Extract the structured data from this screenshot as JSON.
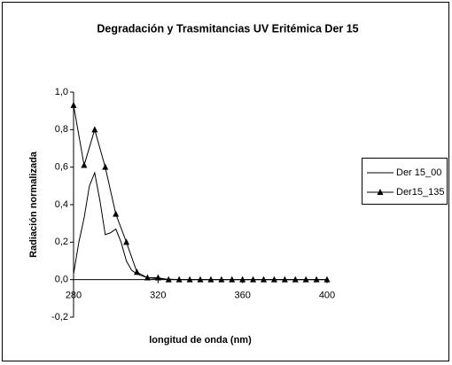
{
  "chart_data": {
    "type": "line",
    "title": "Degradación y Trasmitancias UV Eritémica Der 15",
    "xlabel": "longitud de onda (nm)",
    "ylabel": "Radiación normalizada",
    "xlim": [
      280,
      400
    ],
    "xticks": [
      280,
      320,
      360,
      400
    ],
    "ylim": [
      -0.2,
      1.0
    ],
    "yticks": [
      {
        "value": -0.2,
        "label": "-0,2"
      },
      {
        "value": 0,
        "label": "0,0"
      },
      {
        "value": 0.2,
        "label": "0,2"
      },
      {
        "value": 0.4,
        "label": "0,4"
      },
      {
        "value": 0.6,
        "label": "0,6"
      },
      {
        "value": 0.8,
        "label": "0,8"
      },
      {
        "value": 1.0,
        "label": "1,0"
      }
    ],
    "legend": "right",
    "series": [
      {
        "name": "Der 15_00",
        "color": "#000000",
        "marker": "none",
        "x": [
          280,
          282.5,
          285,
          287.5,
          290,
          292.5,
          295,
          297.5,
          300,
          302.5,
          305,
          307.5,
          310,
          315,
          320,
          330,
          340,
          350,
          360,
          370,
          380,
          390,
          400
        ],
        "values": [
          0.03,
          0.2,
          0.33,
          0.5,
          0.57,
          0.42,
          0.24,
          0.25,
          0.27,
          0.2,
          0.1,
          0.05,
          0.03,
          0.01,
          0.005,
          0,
          0,
          0,
          0,
          0,
          0,
          0,
          0
        ]
      },
      {
        "name": "Der15_135",
        "color": "#000000",
        "marker": "triangle",
        "x": [
          280,
          285,
          290,
          295,
          300,
          305,
          310,
          315,
          320,
          325,
          330,
          335,
          340,
          345,
          350,
          355,
          360,
          365,
          370,
          375,
          380,
          385,
          390,
          395,
          400
        ],
        "values": [
          0.93,
          0.61,
          0.8,
          0.6,
          0.35,
          0.2,
          0.04,
          0.01,
          0.01,
          0,
          0,
          0,
          0,
          0,
          0,
          0,
          0,
          0,
          0,
          0,
          0,
          0,
          0,
          0,
          0
        ]
      }
    ]
  }
}
